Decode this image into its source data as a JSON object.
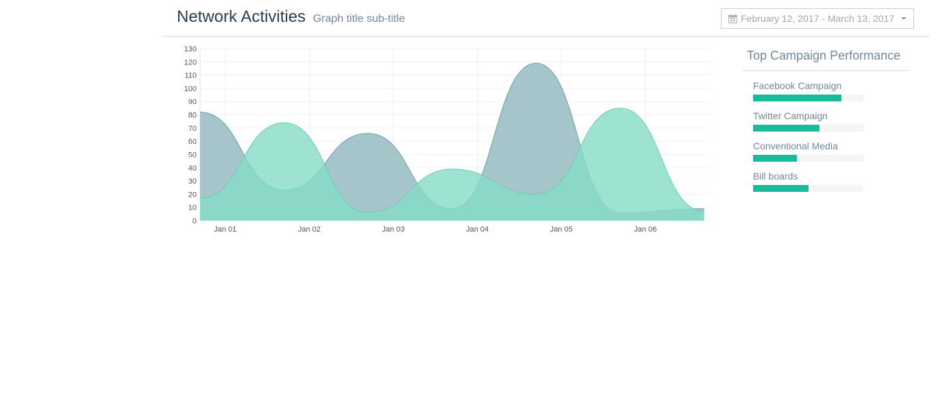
{
  "header": {
    "title": "Network Activities",
    "subtitle": "Graph title sub-title",
    "date_range": "February 12, 2017 - March 13, 2017"
  },
  "colors": {
    "series_a": "#8fb7bd",
    "series_b": "#86dcc7",
    "accent": "#1ABB9C"
  },
  "sidebar": {
    "title": "Top Campaign Performance",
    "items": [
      {
        "label": "Facebook Campaign",
        "progress": 80
      },
      {
        "label": "Twitter Campaign",
        "progress": 60
      },
      {
        "label": "Conventional Media",
        "progress": 40
      },
      {
        "label": "Bill boards",
        "progress": 50
      }
    ]
  },
  "chart_data": {
    "type": "area",
    "categories": [
      "Jan 01",
      "Jan 02",
      "Jan 03",
      "Jan 04",
      "Jan 05",
      "Jan 06"
    ],
    "x": [
      0.7,
      1.7,
      2.7,
      3.7,
      4.7,
      5.7,
      6.7
    ],
    "xlim": [
      0.7,
      6.76
    ],
    "ylim": [
      0,
      130
    ],
    "yticks": [
      0,
      10,
      20,
      30,
      40,
      50,
      60,
      70,
      80,
      90,
      100,
      110,
      120,
      130
    ],
    "series": [
      {
        "values": [
          82,
          23,
          66,
          9,
          119,
          6,
          9
        ]
      },
      {
        "values": [
          17,
          74,
          6,
          39,
          20,
          85,
          7
        ]
      }
    ],
    "grid": true,
    "smooth": true
  }
}
